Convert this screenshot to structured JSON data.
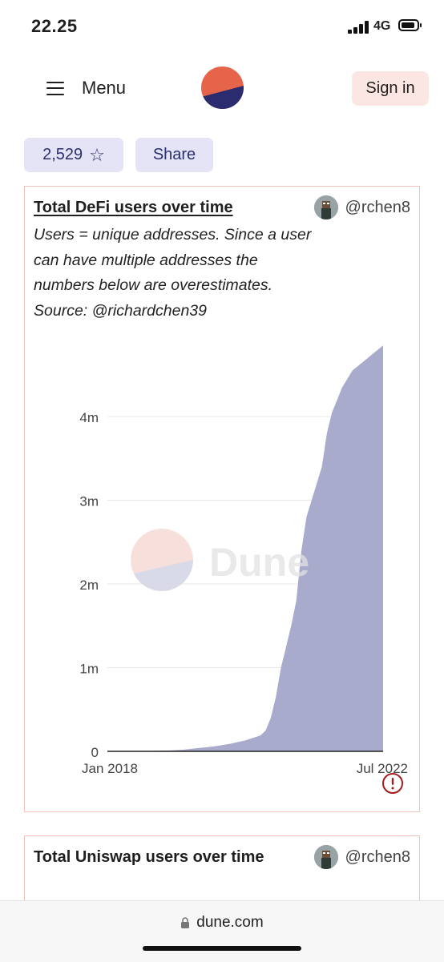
{
  "status_bar": {
    "time": "22.25",
    "network": "4G"
  },
  "header": {
    "menu_label": "Menu",
    "sign_in_label": "Sign in"
  },
  "actions": {
    "stars_count": "2,529",
    "stars_icon": "☆",
    "share_label": "Share"
  },
  "cards": [
    {
      "title": "Total DeFi users over time",
      "author": "@rchen8",
      "description": "Users = unique addresses. Since a user can have multiple addresses the numbers below are overestimates. Source: @richardchen39"
    },
    {
      "title": "Total Uniswap users over time",
      "author": "@rchen8"
    }
  ],
  "chart_data": {
    "type": "area",
    "title": "",
    "xlabel": "",
    "ylabel": "",
    "x_tick_labels": [
      "Jan 2018",
      "Jul 2022"
    ],
    "y_tick_labels": [
      "0",
      "1m",
      "2m",
      "3m",
      "4m"
    ],
    "y_ticks": [
      0,
      1000000,
      2000000,
      3000000,
      4000000
    ],
    "ylim": [
      0,
      4900000
    ],
    "xlim": [
      "2018-01",
      "2022-07"
    ],
    "grid": true,
    "watermark": "Dune",
    "color": "#a9abcc",
    "series": [
      {
        "x": [
          "2018-01",
          "2018-07",
          "2019-01",
          "2019-04",
          "2019-07",
          "2019-10",
          "2020-01",
          "2020-04",
          "2020-07",
          "2020-08",
          "2020-09",
          "2020-10",
          "2020-11",
          "2020-12",
          "2021-01",
          "2021-02",
          "2021-03",
          "2021-04",
          "2021-05",
          "2021-06",
          "2021-07",
          "2021-08",
          "2021-09",
          "2021-10",
          "2021-11",
          "2021-12",
          "2022-01",
          "2022-03",
          "2022-05",
          "2022-07"
        ],
        "y": [
          0,
          2000,
          10000,
          20000,
          40000,
          60000,
          90000,
          130000,
          190000,
          250000,
          400000,
          650000,
          1000000,
          1250000,
          1500000,
          1800000,
          2400000,
          2800000,
          3000000,
          3200000,
          3400000,
          3800000,
          4050000,
          4200000,
          4350000,
          4450000,
          4550000,
          4650000,
          4750000,
          4850000
        ]
      }
    ]
  },
  "footer": {
    "url": "dune.com"
  },
  "colors": {
    "accent_orange": "#e6654a",
    "accent_navy": "#2b2b6f",
    "pill_bg": "#e4e4f6",
    "card_border": "#f3c2bd",
    "alert": "#a31d1d"
  }
}
